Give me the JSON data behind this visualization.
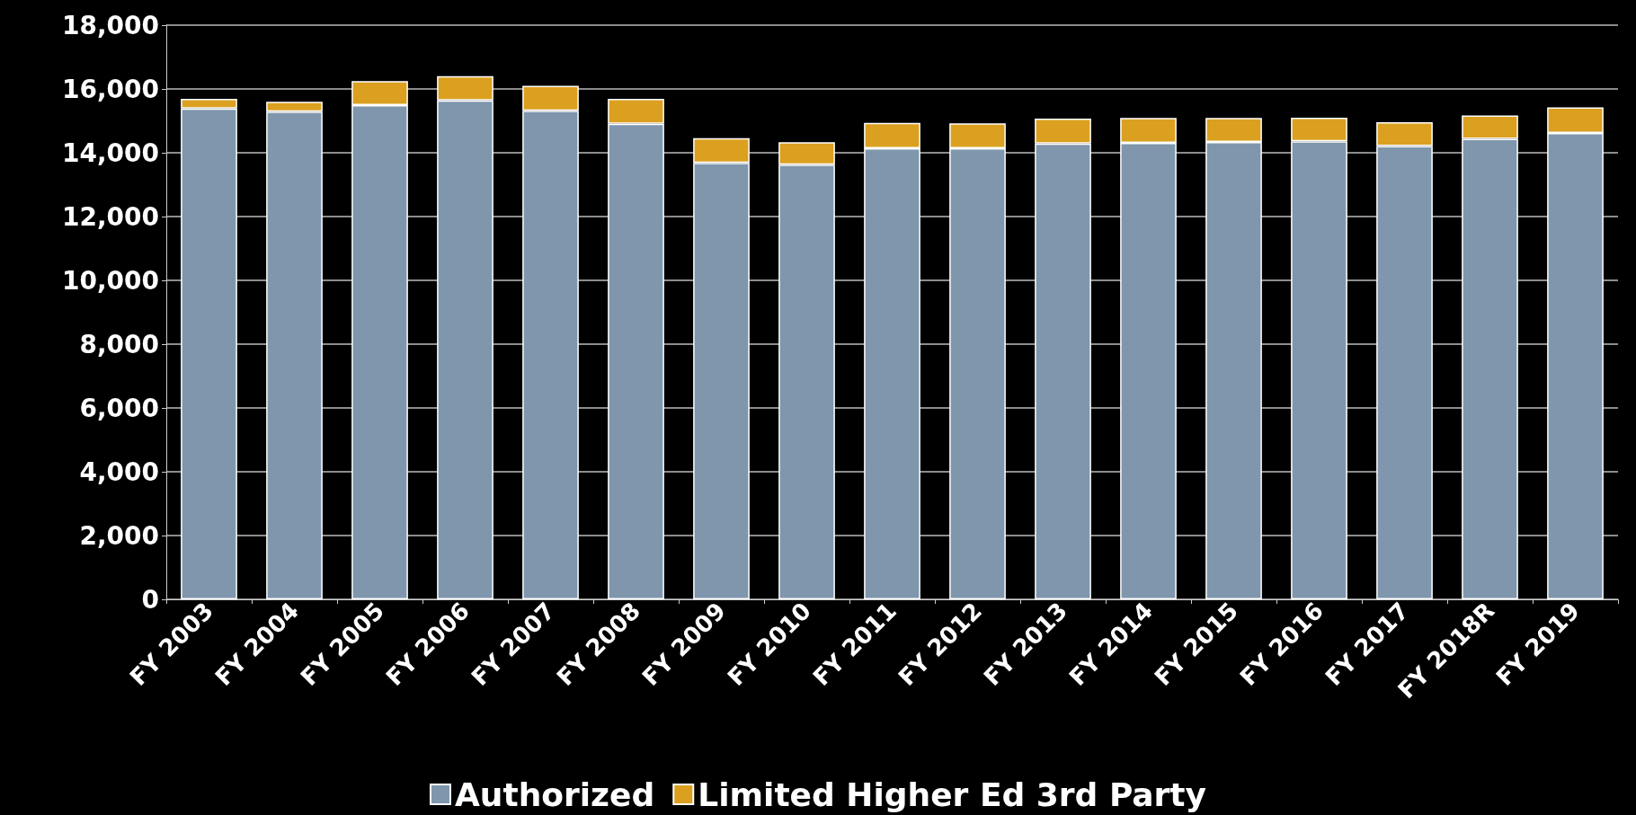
{
  "chart_data": {
    "type": "bar",
    "stacked": true,
    "categories": [
      "FY 2003",
      "FY 2004",
      "FY 2005",
      "FY 2006",
      "FY 2007",
      "FY 2008",
      "FY 2009",
      "FY 2010",
      "FY 2011",
      "FY 2012",
      "FY 2013",
      "FY 2014",
      "FY 2015",
      "FY 2016",
      "FY 2017",
      "FY 2018R",
      "FY 2019"
    ],
    "series": [
      {
        "name": "Authorized",
        "color": "#7f96ad",
        "values": [
          15390,
          15290,
          15490,
          15640,
          15320,
          14910,
          13680,
          13630,
          14140,
          14140,
          14290,
          14310,
          14340,
          14360,
          14210,
          14440,
          14620
        ]
      },
      {
        "name": "Limited Higher Ed 3rd Party",
        "color": "#dba020",
        "values": [
          300,
          310,
          760,
          760,
          780,
          780,
          780,
          700,
          800,
          780,
          780,
          780,
          750,
          740,
          750,
          730,
          800
        ]
      }
    ],
    "ylim": [
      0,
      18000
    ],
    "yticks": [
      0,
      {
        "value": 2000,
        "label": "2,000"
      },
      {
        "value": 4000,
        "label": "4,000"
      },
      {
        "value": 6000,
        "label": "6,000"
      },
      {
        "value": 8000,
        "label": "8,000"
      },
      {
        "value": 10000,
        "label": "10,000"
      },
      {
        "value": 12000,
        "label": "12,000"
      },
      {
        "value": 14000,
        "label": "14,000"
      },
      {
        "value": 16000,
        "label": "16,000"
      },
      {
        "value": 18000,
        "label": "18,000"
      }
    ],
    "grid": "y",
    "legend": "bottom"
  }
}
